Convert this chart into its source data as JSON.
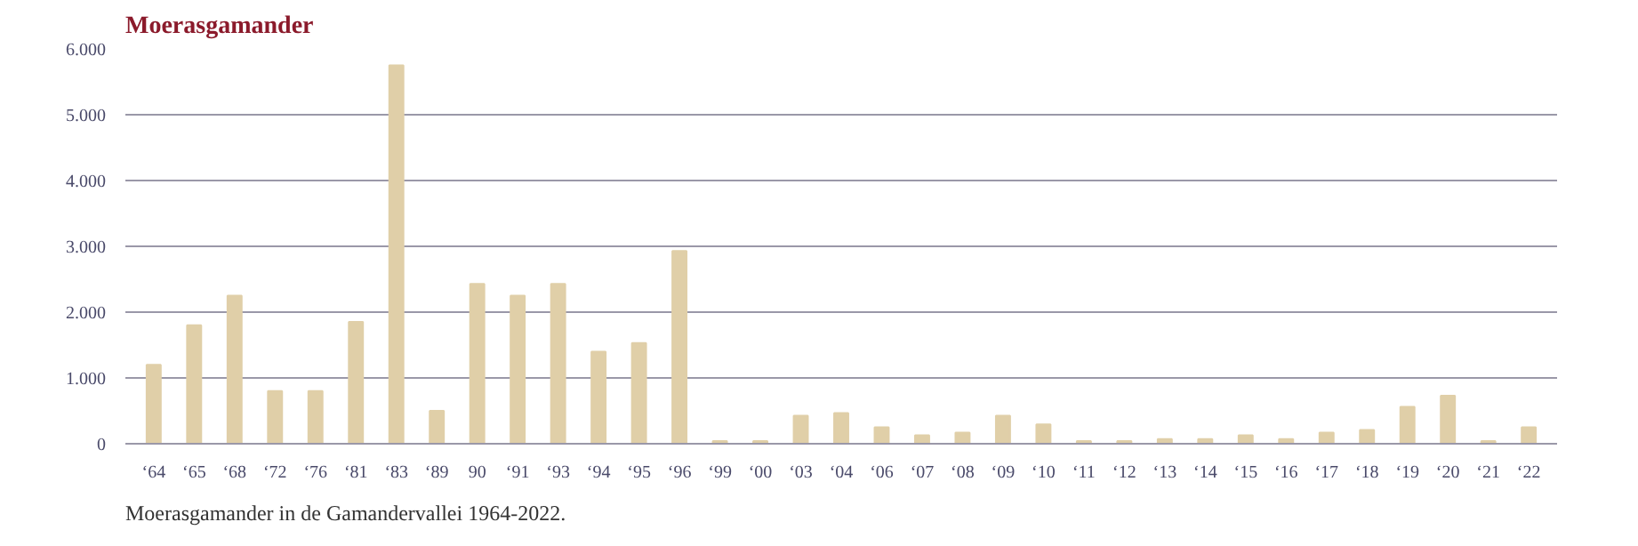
{
  "chart_data": {
    "type": "bar",
    "title": "Moerasgamander",
    "categories": [
      "‘64",
      "‘65",
      "‘68",
      "‘72",
      "‘76",
      "‘81",
      "‘83",
      "‘89",
      "90",
      "‘91",
      "‘93",
      "‘94",
      "‘95",
      "‘96",
      "‘99",
      "‘00",
      "‘03",
      "‘04",
      "‘06",
      "‘07",
      "‘08",
      "‘09",
      "‘10",
      "‘11",
      "‘12",
      "‘13",
      "‘14",
      "‘15",
      "‘16",
      "‘17",
      "‘18",
      "‘19",
      "‘20",
      "‘21",
      "‘22"
    ],
    "values": [
      1200,
      1800,
      2250,
      800,
      800,
      1850,
      5750,
      500,
      2430,
      2250,
      2430,
      1400,
      1530,
      2930,
      40,
      40,
      425,
      465,
      250,
      130,
      170,
      425,
      295,
      40,
      40,
      70,
      70,
      130,
      70,
      170,
      210,
      560,
      730,
      40,
      250
    ],
    "color": "#e0cfa8",
    "ylim": [
      0,
      6000
    ],
    "yticks": [
      {
        "value": 0,
        "label": "0"
      },
      {
        "value": 1000,
        "label": "1.000"
      },
      {
        "value": 2000,
        "label": "2.000"
      },
      {
        "value": 3000,
        "label": "3.000"
      },
      {
        "value": 4000,
        "label": "4.000"
      },
      {
        "value": 5000,
        "label": "5.000"
      },
      {
        "value": 6000,
        "label": "6.000"
      }
    ],
    "grid": "y",
    "annotations": [
      "Moerasgamander in de Gamandervallei 1964-2022."
    ]
  }
}
